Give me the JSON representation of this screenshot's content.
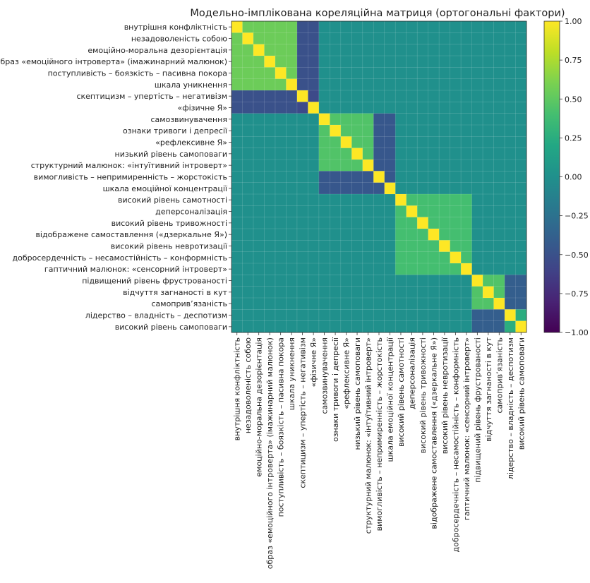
{
  "chart_data": {
    "type": "heatmap",
    "title": "Модельно-імплікована кореляційна матриця (ортогональні фактори)",
    "labels": [
      "внутрішня конфліктність",
      "незадоволеність собою",
      "емоційно-моральна дезорієнтація",
      "образ «емоційного інтроверта» (імажинарний малюнок)",
      "поступливість – боязкість – пасивна покора",
      "шкала уникнення",
      "скептицизм – упертість – негативізм",
      "«фізичне Я»",
      "самозвинувачення",
      "ознаки тривоги і депресії",
      "«рефлексивне Я»",
      "низький рівень самоповаги",
      "структурний малюнок: «інтуїтивний інтроверт»",
      "вимогливість – непримиренність – жорстокість",
      "шкала емоційної концентрації",
      "високий рівень самотності",
      "деперсоналізація",
      "високий рівень тривожності",
      "відображене самоставлення («дзеркальне Я»)",
      "високий рівень невротизації",
      "добросердечність – несамостійність – конформність",
      "гаптичний малюнок: «сенсорний інтроверт»",
      "підвищений рівень фрустрованості",
      "відчуття загнаності в кут",
      "самоприв’язаність",
      "лідерство – владність – деспотизм",
      "високий рівень самоповаги"
    ],
    "blocks": [
      {
        "start": 0,
        "pos": 6,
        "neg": 2,
        "pos_r": 0.55,
        "neg_r": -0.55,
        "cross_r": -0.5
      },
      {
        "start": 8,
        "pos": 5,
        "neg": 2,
        "pos_r": 0.45,
        "neg_r": -0.45,
        "cross_r": -0.45
      },
      {
        "start": 15,
        "pos": 7,
        "neg": 0,
        "pos_r": 0.4,
        "neg_r": 0,
        "cross_r": 0
      },
      {
        "start": 22,
        "pos": 3,
        "neg": 2,
        "pos_r": 0.45,
        "neg_r": 0.25,
        "cross_r": -0.4
      }
    ],
    "values_description": "",
    "colorbar": {
      "min": -1.0,
      "max": 1.0,
      "ticks": [
        "1.00",
        "0.75",
        "0.50",
        "0.25",
        "0.00",
        "−0.25",
        "−0.50",
        "−0.75",
        "−1.00"
      ],
      "tick_values": [
        1,
        0.75,
        0.5,
        0.25,
        0,
        -0.25,
        -0.5,
        -0.75,
        -1
      ]
    },
    "grid": true
  }
}
